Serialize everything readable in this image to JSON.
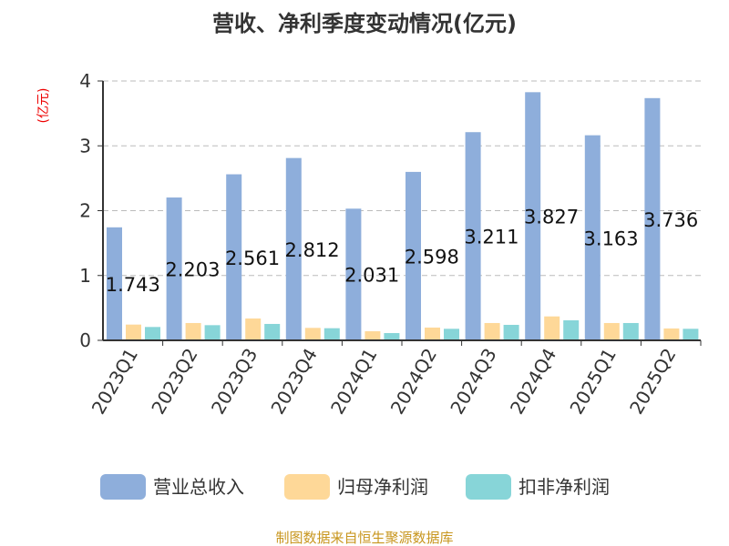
{
  "chart_data": {
    "type": "bar",
    "title": "营收、净利季度变动情况(亿元)",
    "ylabel": "(亿元)",
    "ylim": [
      0,
      4
    ],
    "yticks": [
      0,
      1,
      2,
      3,
      4
    ],
    "grid": true,
    "legend_position": "bottom",
    "categories": [
      "2023Q1",
      "2023Q2",
      "2023Q3",
      "2023Q4",
      "2024Q1",
      "2024Q2",
      "2024Q3",
      "2024Q4",
      "2025Q1",
      "2025Q2"
    ],
    "series": [
      {
        "name": "营业总收入",
        "color": "#8eaedb",
        "values": [
          1.743,
          2.203,
          2.561,
          2.812,
          2.031,
          2.598,
          3.211,
          3.827,
          3.163,
          3.736
        ],
        "labeled": true
      },
      {
        "name": "归母净利润",
        "color": "#fed898",
        "values": [
          0.243,
          0.267,
          0.337,
          0.192,
          0.14,
          0.197,
          0.267,
          0.369,
          0.267,
          0.183
        ]
      },
      {
        "name": "扣非净利润",
        "color": "#87d5d8",
        "values": [
          0.206,
          0.234,
          0.253,
          0.187,
          0.112,
          0.178,
          0.239,
          0.309,
          0.267,
          0.178
        ]
      }
    ]
  },
  "footer": "制图数据来自恒生聚源数据库"
}
